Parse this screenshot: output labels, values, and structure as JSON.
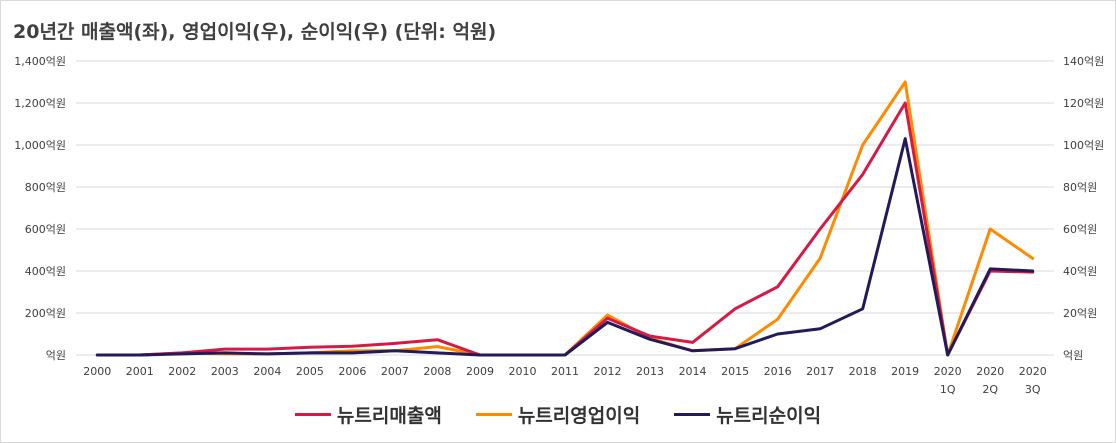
{
  "title": "20년간 매출액(좌), 영업이익(우), 순이익(우) (단위: 억원)",
  "colors": {
    "revenue": "#d41a45",
    "operating": "#ff8a00",
    "net": "#231a5a",
    "grid": "#d9d9d9",
    "text": "#404040"
  },
  "chart_data": {
    "type": "line",
    "title": "20년간 매출액(좌), 영업이익(우), 순이익(우) (단위: 억원)",
    "categories": [
      "2000",
      "2001",
      "2002",
      "2003",
      "2004",
      "2005",
      "2006",
      "2007",
      "2008",
      "2009",
      "2010",
      "2011",
      "2012",
      "2013",
      "2014",
      "2015",
      "2016",
      "2017",
      "2018",
      "2019",
      "2020\n1Q",
      "2020\n2Q",
      "2020\n3Q"
    ],
    "y_left": {
      "range": [
        0,
        1400
      ],
      "ticks": [
        "억원",
        "200억원",
        "400억원",
        "600억원",
        "800억원",
        "1,000억원",
        "1,200억원",
        "1,400억원"
      ]
    },
    "y_right": {
      "range": [
        0,
        140
      ],
      "ticks": [
        "억원",
        "20억원",
        "40억원",
        "60억원",
        "80억원",
        "100억원",
        "120억원",
        "140억원"
      ]
    },
    "grid": true,
    "legend_position": "bottom",
    "series": [
      {
        "name": "뉴트리매출액",
        "axis": "left",
        "values": [
          0,
          0,
          10,
          28,
          28,
          37,
          42,
          55,
          73,
          0,
          0,
          0,
          175,
          90,
          60,
          220,
          325,
          600,
          860,
          1200,
          0,
          400,
          395
        ]
      },
      {
        "name": "뉴트리영업이익",
        "axis": "right",
        "values": [
          0,
          0,
          1,
          0.5,
          0.5,
          1,
          2,
          2,
          4,
          0,
          0,
          0,
          19,
          8,
          2,
          3,
          17,
          46,
          100,
          130,
          0,
          60,
          46
        ]
      },
      {
        "name": "뉴트리순이익",
        "axis": "right",
        "values": [
          0,
          0,
          0.5,
          1,
          0.5,
          1,
          1,
          2,
          1,
          0,
          0,
          0,
          15.5,
          7.5,
          2,
          3,
          10,
          12.5,
          22,
          103,
          0,
          41,
          40
        ]
      }
    ]
  }
}
